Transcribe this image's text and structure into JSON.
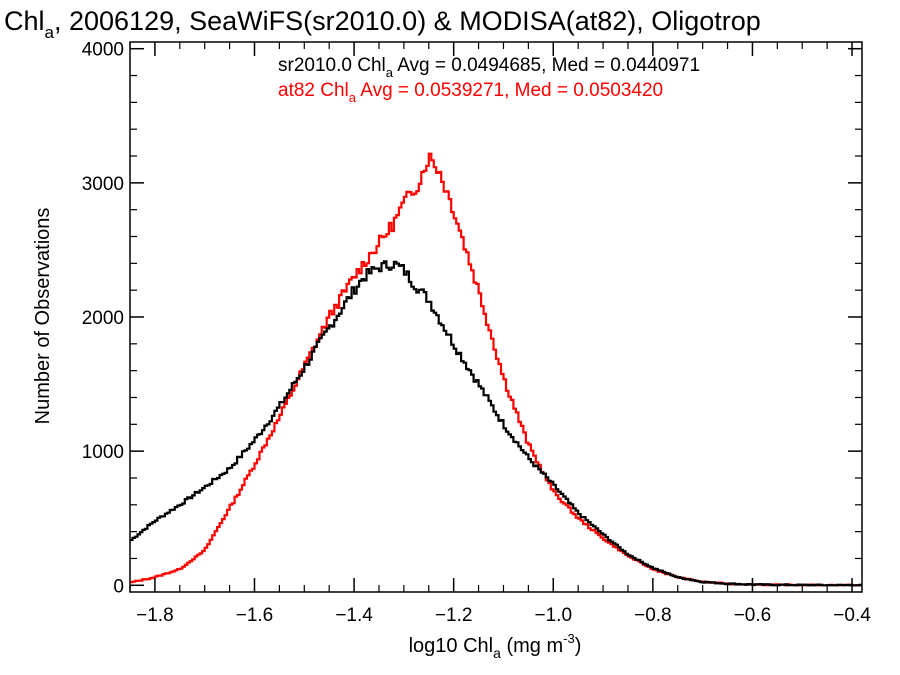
{
  "chart_data": {
    "type": "line",
    "title": {
      "p1": "Chl",
      "p1sub": "a",
      "p2": ", 2006129, SeaWiFS(sr2010.0) & MODISA(at82), Oligotrop"
    },
    "xlabel": {
      "p1": "log10 Chl",
      "p1sub": "a",
      "p2": " (mg m",
      "p2sup": "-3",
      "p3": ")"
    },
    "ylabel": "Number of Observations",
    "xlim": [
      -1.85,
      -0.38
    ],
    "ylim": [
      -50,
      4050
    ],
    "x_ticks": [
      -1.8,
      -1.6,
      -1.4,
      -1.2,
      -1.0,
      -0.8,
      -0.6,
      -0.4
    ],
    "x_tick_labels": [
      "−1.8",
      "−1.6",
      "−1.4",
      "−1.2",
      "−1.0",
      "−0.8",
      "−0.6",
      "−0.4"
    ],
    "y_ticks": [
      0,
      1000,
      2000,
      3000,
      4000
    ],
    "y_tick_labels": [
      "0",
      "1000",
      "2000",
      "3000",
      "4000"
    ],
    "annotations": [
      {
        "p1": "sr2010.0 Chl",
        "sub": "a",
        "p2": " Avg = 0.0494685, Med = 0.0440971",
        "color": "#000000"
      },
      {
        "p1": "at82 Chl",
        "sub": "a",
        "p2": " Avg = 0.0539271, Med = 0.0503420",
        "color": "#ff0000"
      }
    ],
    "series": [
      {
        "color": "#000000",
        "x": [
          -1.85,
          -1.8,
          -1.75,
          -1.7,
          -1.65,
          -1.6,
          -1.55,
          -1.5,
          -1.45,
          -1.4,
          -1.38,
          -1.35,
          -1.32,
          -1.3,
          -1.28,
          -1.25,
          -1.2,
          -1.15,
          -1.1,
          -1.05,
          -1.0,
          -0.95,
          -0.9,
          -0.85,
          -0.8,
          -0.75,
          -0.7,
          -0.65,
          -0.6,
          -0.55,
          -0.5,
          -0.45,
          -0.4,
          -0.38
        ],
        "y": [
          330,
          480,
          600,
          730,
          870,
          1080,
          1330,
          1620,
          1920,
          2200,
          2300,
          2370,
          2400,
          2350,
          2250,
          2130,
          1800,
          1500,
          1200,
          950,
          750,
          540,
          380,
          230,
          130,
          60,
          25,
          12,
          6,
          3,
          2,
          1,
          1,
          0
        ]
      },
      {
        "color": "#ff0000",
        "x": [
          -1.85,
          -1.8,
          -1.75,
          -1.7,
          -1.67,
          -1.63,
          -1.6,
          -1.55,
          -1.5,
          -1.45,
          -1.4,
          -1.35,
          -1.32,
          -1.3,
          -1.27,
          -1.25,
          -1.23,
          -1.2,
          -1.15,
          -1.1,
          -1.05,
          -1.0,
          -0.95,
          -0.9,
          -0.85,
          -0.8,
          -0.75,
          -0.7,
          -0.65,
          -0.6,
          -0.55,
          -0.5,
          -0.45,
          -0.4,
          -0.38
        ],
        "y": [
          20,
          60,
          120,
          260,
          450,
          700,
          900,
          1250,
          1630,
          2000,
          2300,
          2550,
          2700,
          2850,
          3000,
          3200,
          3100,
          2800,
          2200,
          1550,
          1050,
          700,
          500,
          350,
          220,
          120,
          60,
          25,
          12,
          6,
          3,
          2,
          1,
          1,
          0
        ]
      }
    ]
  }
}
